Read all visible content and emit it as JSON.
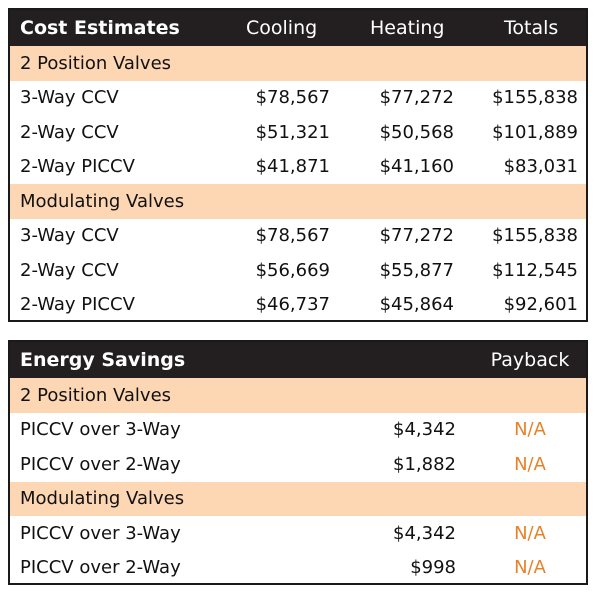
{
  "cost_estimates": {
    "title": "Cost Estimates",
    "columns": [
      "Cooling",
      "Heating",
      "Totals"
    ],
    "sections": [
      {
        "name": "2 Position Valves",
        "rows": [
          {
            "label": "3-Way CCV",
            "cooling": "$78,567",
            "heating": "$77,272",
            "total": "$155,838"
          },
          {
            "label": "2-Way CCV",
            "cooling": "$51,321",
            "heating": "$50,568",
            "total": "$101,889"
          },
          {
            "label": "2-Way PICCV",
            "cooling": "$41,871",
            "heating": "$41,160",
            "total": "$83,031"
          }
        ]
      },
      {
        "name": "Modulating Valves",
        "rows": [
          {
            "label": "3-Way CCV",
            "cooling": "$78,567",
            "heating": "$77,272",
            "total": "$155,838"
          },
          {
            "label": "2-Way CCV",
            "cooling": "$56,669",
            "heating": "$55,877",
            "total": "$112,545"
          },
          {
            "label": "2-Way PICCV",
            "cooling": "$46,737",
            "heating": "$45,864",
            "total": "$92,601"
          }
        ]
      }
    ]
  },
  "energy_savings": {
    "title": "Energy Savings",
    "payback_header": "Payback",
    "sections": [
      {
        "name": "2 Position Valves",
        "rows": [
          {
            "label": "PICCV over 3-Way",
            "savings": "$4,342",
            "payback": "N/A"
          },
          {
            "label": "PICCV over 2-Way",
            "savings": "$1,882",
            "payback": "N/A"
          }
        ]
      },
      {
        "name": "Modulating Valves",
        "rows": [
          {
            "label": "PICCV over 3-Way",
            "savings": "$4,342",
            "payback": "N/A"
          },
          {
            "label": "PICCV over 2-Way",
            "savings": "$998",
            "payback": "N/A"
          }
        ]
      }
    ]
  },
  "colors": {
    "header_bg": "#231f20",
    "section_bg": "#fdd7b3",
    "payback_text": "#e8822a"
  }
}
